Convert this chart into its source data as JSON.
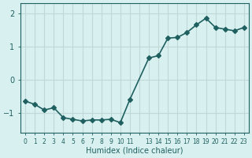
{
  "x": [
    0,
    1,
    2,
    3,
    4,
    5,
    6,
    7,
    8,
    9,
    10,
    11,
    13,
    14,
    15,
    16,
    17,
    18,
    19,
    20,
    21,
    22,
    23
  ],
  "y": [
    -0.65,
    -0.75,
    -0.92,
    -0.85,
    -1.15,
    -1.2,
    -1.25,
    -1.22,
    -1.22,
    -1.2,
    -1.3,
    -0.6,
    0.65,
    0.72,
    1.25,
    1.27,
    1.42,
    1.65,
    1.85,
    1.57,
    1.52,
    1.47,
    1.57
  ],
  "line_color": "#206060",
  "marker_color": "#206060",
  "bg_color": "#d8f0f0",
  "grid_color": "#c0d8d8",
  "xlabel": "Humidex (Indice chaleur)",
  "ylim": [
    -1.6,
    2.3
  ],
  "yticks": [
    -1,
    0,
    1,
    2
  ],
  "xticks": [
    0,
    1,
    2,
    3,
    4,
    5,
    6,
    7,
    8,
    9,
    10,
    11,
    12,
    13,
    14,
    15,
    16,
    17,
    18,
    19,
    20,
    21,
    22,
    23
  ],
  "xtick_labels": [
    "0",
    "1",
    "2",
    "3",
    "4",
    "5",
    "6",
    "7",
    "8",
    "9",
    "10",
    "11",
    "",
    "13",
    "14",
    "15",
    "16",
    "17",
    "18",
    "19",
    "20",
    "21",
    "22",
    "23"
  ],
  "label_color": "#206060",
  "tick_color": "#206060",
  "line_width": 1.2,
  "marker_size": 3
}
